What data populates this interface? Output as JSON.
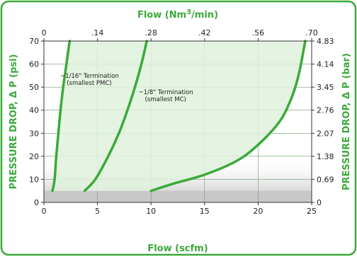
{
  "colors": {
    "accent": "#3aaa3a",
    "frame": "#3aaa3a",
    "fill": "#dff1dd",
    "gray_band": "#c8c8c8"
  },
  "chart_data": {
    "type": "line",
    "title": "",
    "xlabel": "Flow (scfm)",
    "x2label": "Flow (Nm3/min)",
    "x2label_main": "Flow (Nm",
    "x2label_sup": "3",
    "x2label_tail": "/min)",
    "ylabel": "PRESSURE DROP, Δ P (psi)",
    "y2label": "PRESSURE DROP, Δ P (bar)",
    "xlim": [
      0,
      25
    ],
    "ylim": [
      0,
      70
    ],
    "x_ticks": [
      "0",
      "5",
      "10",
      "15",
      "20",
      "25"
    ],
    "y_ticks": [
      "0",
      "10",
      "20",
      "30",
      "40",
      "50",
      "60",
      "70"
    ],
    "x2_ticks": [
      "0",
      ".14",
      ".28",
      ".42",
      ".56",
      ".70"
    ],
    "y2_ticks": [
      "0",
      "0.69",
      "1.38",
      "2.07",
      "2.76",
      "3.45",
      "4.14",
      "4.83"
    ],
    "grid": true,
    "shaded_band_below_psi": 5,
    "series": [
      {
        "name": "1/16\" Termination (smallest PMC)",
        "points": [
          [
            0.8,
            5
          ],
          [
            1.0,
            10
          ],
          [
            1.15,
            20
          ],
          [
            1.35,
            30
          ],
          [
            1.55,
            40
          ],
          [
            1.8,
            50
          ],
          [
            2.1,
            60
          ],
          [
            2.4,
            70
          ]
        ]
      },
      {
        "name": "1/8\" Termination (smallest MC)",
        "points": [
          [
            3.8,
            5
          ],
          [
            4.8,
            10
          ],
          [
            6.0,
            20
          ],
          [
            7.0,
            30
          ],
          [
            7.8,
            40
          ],
          [
            8.5,
            50
          ],
          [
            9.1,
            60
          ],
          [
            9.6,
            70
          ]
        ]
      },
      {
        "name": "",
        "points": [
          [
            10,
            5
          ],
          [
            12,
            8
          ],
          [
            15,
            12
          ],
          [
            18,
            18
          ],
          [
            20,
            25
          ],
          [
            22,
            35
          ],
          [
            23,
            44
          ],
          [
            23.6,
            52
          ],
          [
            24.0,
            60
          ],
          [
            24.4,
            70
          ]
        ]
      }
    ],
    "annotations": [
      {
        "line1": "1/16\" Termination",
        "line2": "(smallest PMC)",
        "x": 2.0,
        "y": 54
      },
      {
        "line1": "1/8\" Termination",
        "line2": "(smallest MC)",
        "x": 9.3,
        "y": 47
      }
    ]
  }
}
